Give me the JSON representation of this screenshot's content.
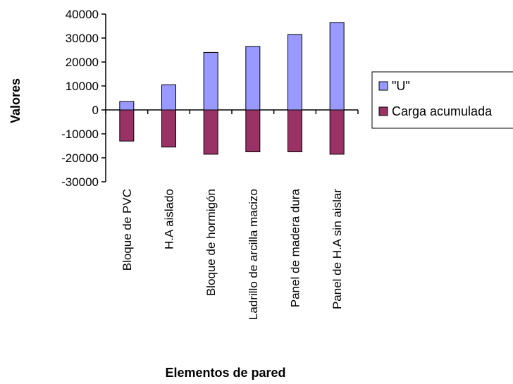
{
  "chart_data": {
    "type": "bar",
    "categories": [
      "Bloque de PVC",
      "H.A aislado",
      "Bloque de hormigón",
      "Ladrillo de arcilla macizo",
      "Panel de madera dura",
      "Panel de H.A sin aislar"
    ],
    "series": [
      {
        "name": "\"U\"",
        "values": [
          3500,
          10500,
          24000,
          26500,
          31500,
          36500
        ],
        "color": "#9999ff"
      },
      {
        "name": "Carga acumulada",
        "values": [
          -13000,
          -15500,
          -18500,
          -17500,
          -17500,
          -18500
        ],
        "color": "#993366"
      }
    ],
    "xlabel": "Elementos de pared",
    "ylabel": "Valores",
    "ylim": [
      -30000,
      40000
    ],
    "yticks": [
      40000,
      30000,
      20000,
      10000,
      0,
      -10000,
      -20000,
      -30000
    ],
    "ytick_labels": [
      "40000",
      "30000",
      "20000",
      "10000",
      "0",
      "-10000",
      "-20000",
      "-30000"
    ],
    "grid": false,
    "legend": "right"
  }
}
